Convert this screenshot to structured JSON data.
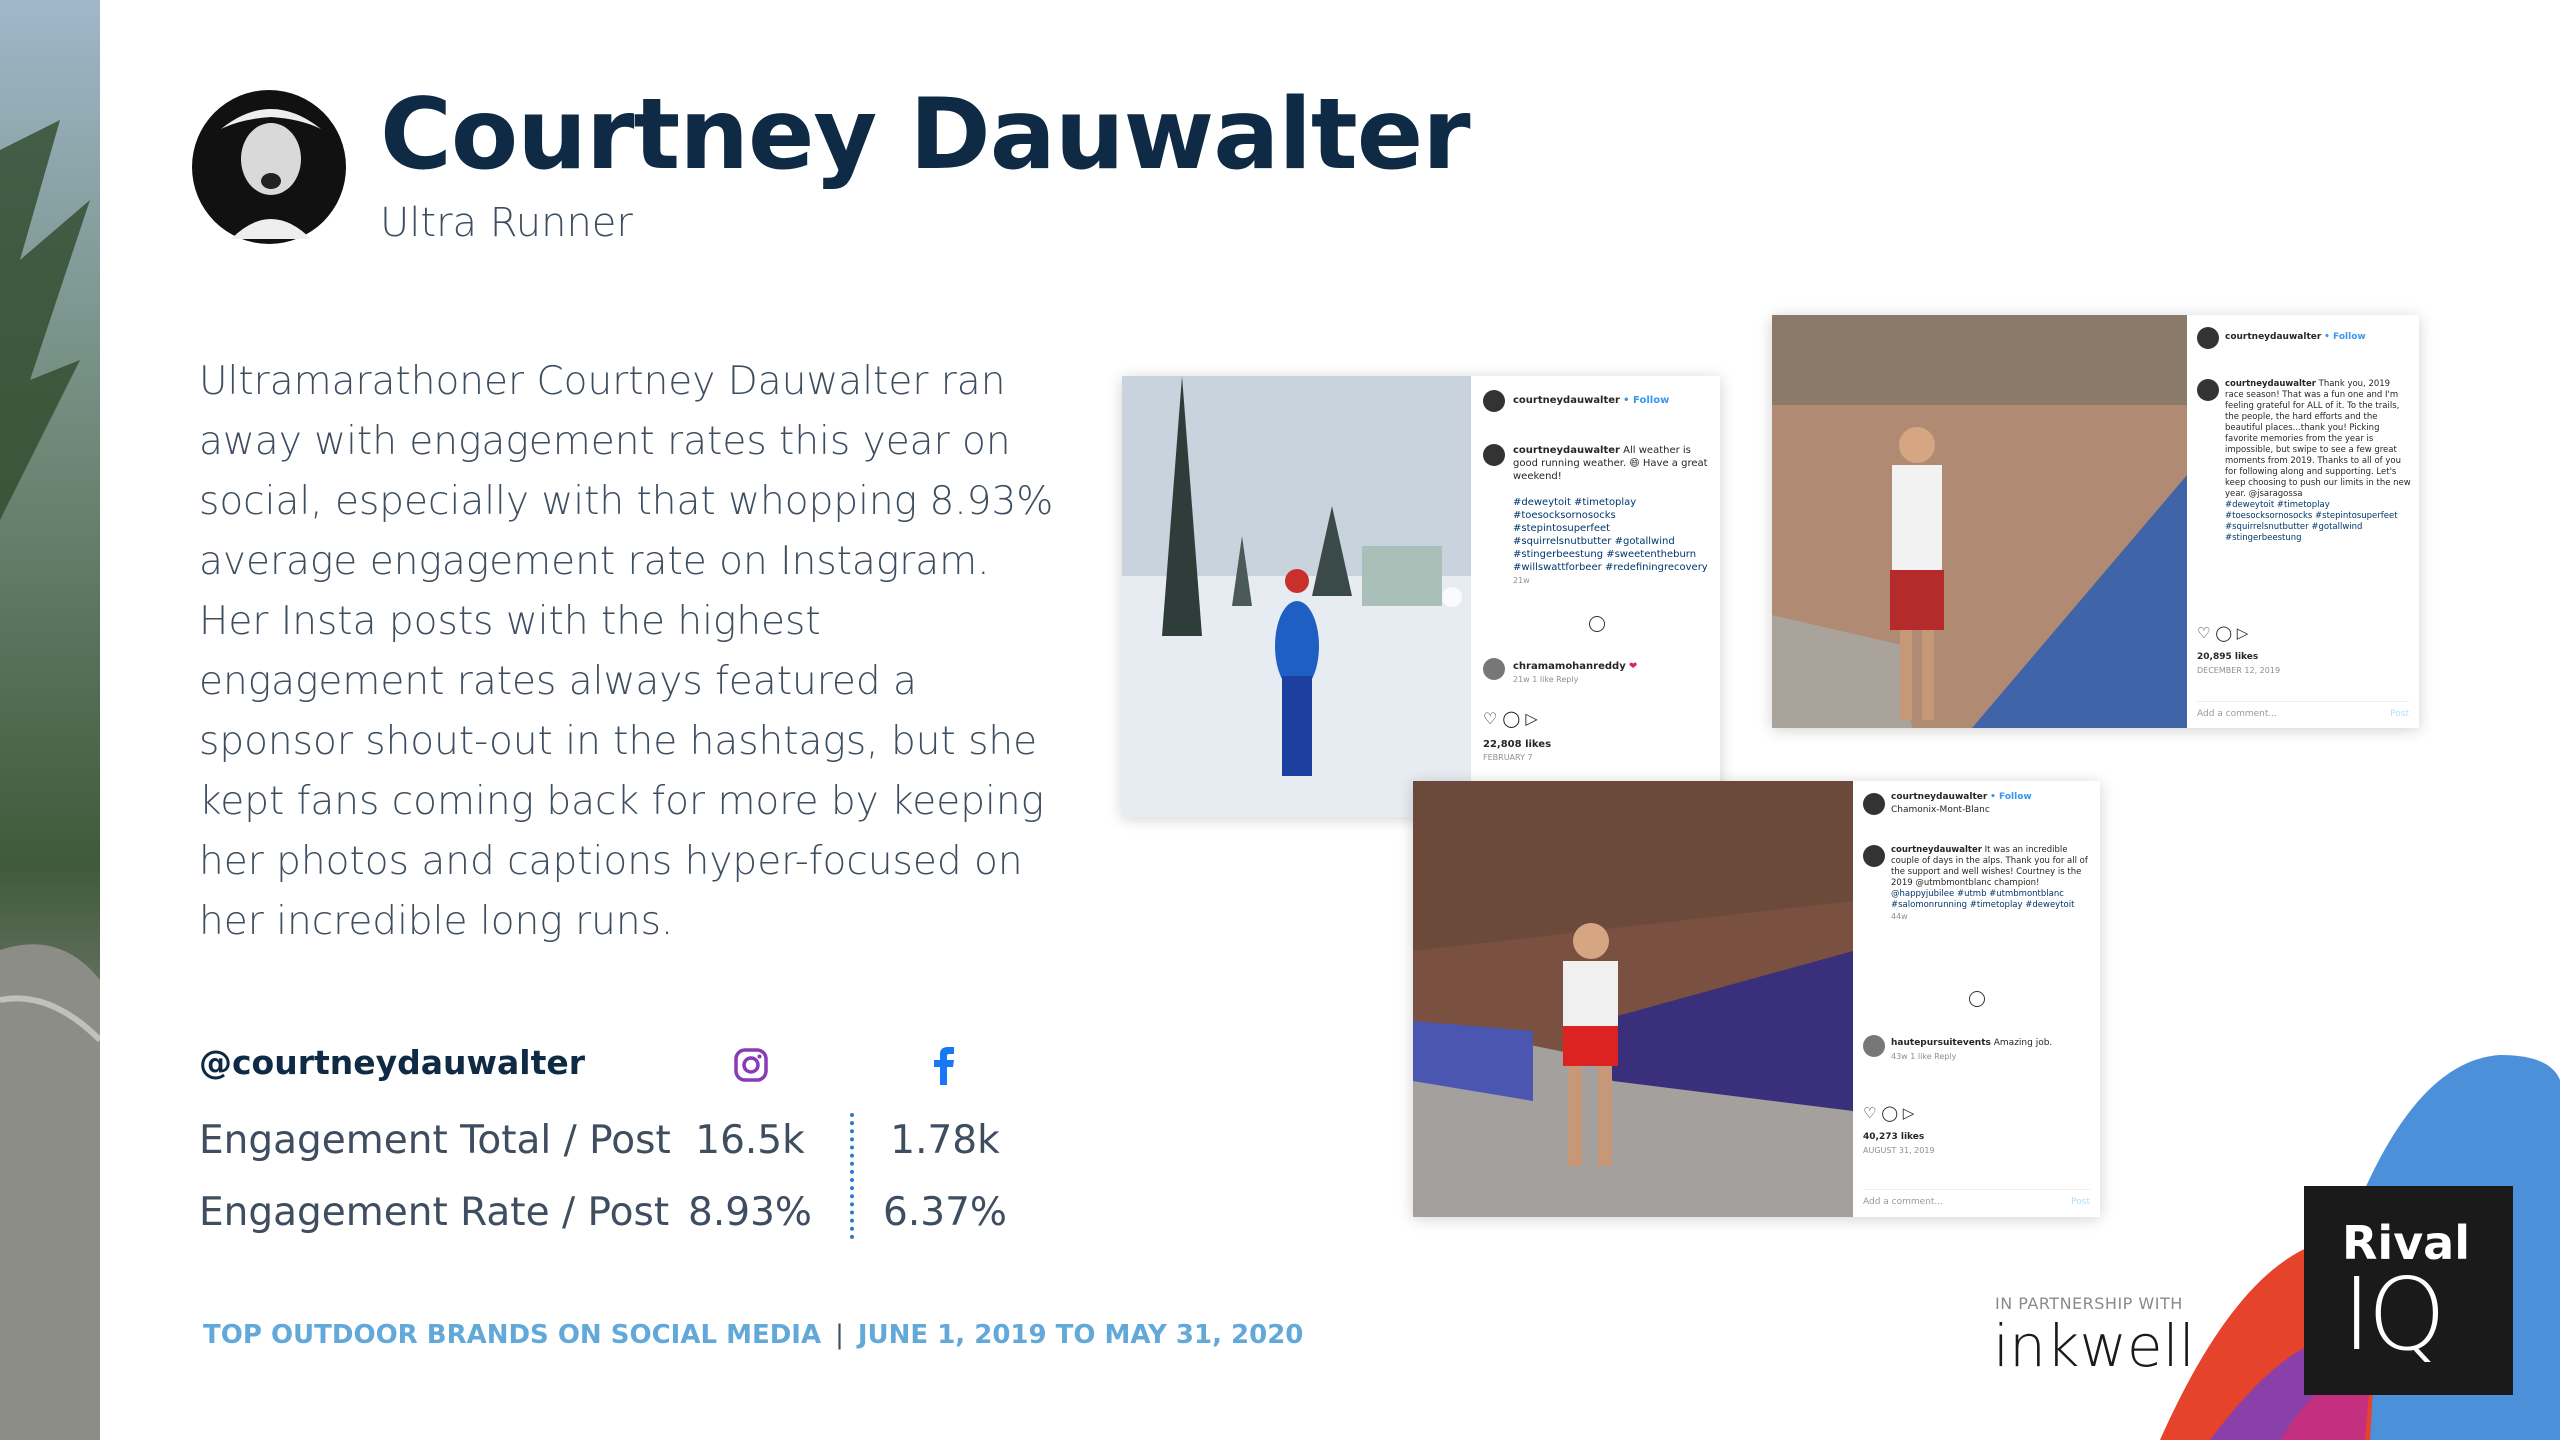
{
  "header": {
    "name": "Courtney Dauwalter",
    "subtitle": "Ultra Runner"
  },
  "description": "Ultramarathoner Courtney Dauwalter ran away with engagement rates this year on social, especially with that whopping 8.93% average engagement rate on Instagram. Her Insta posts with the highest engagement rates always featured a sponsor shout-out in the hashtags, but she kept fans coming back for more by keeping her photos and captions hyper-focused on her incredible long runs.",
  "stats": {
    "handle": "@courtneydauwalter",
    "rows": [
      {
        "label": "Engagement Total / Post",
        "instagram": "16.5k",
        "facebook": "1.78k"
      },
      {
        "label": "Engagement Rate / Post",
        "instagram": "8.93%",
        "facebook": "6.37%"
      }
    ]
  },
  "footer": {
    "report": "TOP OUTDOOR BRANDS ON SOCIAL MEDIA",
    "separator": "|",
    "dates": "JUNE 1, 2019 TO MAY 31, 2020"
  },
  "posts": [
    {
      "username": "courtneydauwalter",
      "follow": "• Follow",
      "caption": "All weather is good running weather. 😄 Have a great weekend!",
      "hashtags": "#deweytoit #timetoplay #toesocksornosocks #stepintosuperfeet #squirrelsnutbutter #gotallwind #stingerbeestung #sweetentheburn #willswattforbeer #redefiningrecovery",
      "age": "21w",
      "comment_user": "chramamohanreddy",
      "comment_meta": "21w 1 like Reply",
      "likes": "22,808 likes",
      "date": "FEBRUARY 7"
    },
    {
      "username": "courtneydauwalter",
      "follow": "• Follow",
      "caption": "Thank you, 2019 race season! That was a fun one and I'm feeling grateful for ALL of it. To the trails, the people, the hard efforts and the beautiful places...thank you! Picking favorite memories from the year is impossible, but swipe to see a few great moments from 2019. Thanks to all of you for following along and supporting. Let's keep choosing to push our limits in the new year. @jsaragossa",
      "hashtags": "#deweytoit #timetoplay #toesocksornosocks #stepintosuperfeet #squirrelsnutbutter #gotallwind #stingerbeestung",
      "likes": "20,895 likes",
      "date": "DECEMBER 12, 2019",
      "add_comment": "Add a comment...",
      "post_button": "Post"
    },
    {
      "username": "courtneydauwalter",
      "follow": "• Follow",
      "location": "Chamonix-Mont-Blanc",
      "caption": "It was an incredible couple of days in the alps. Thank you for all of the support and well wishes! Courtney is the 2019 @utmbmontblanc champion!",
      "hashtags": "@happyjubilee #utmb #utmbmontblanc #salomonrunning #timetoplay #deweytoit",
      "age": "44w",
      "comment_user": "hautepursuitevents",
      "comment_text": "Amazing job.",
      "comment_meta": "43w 1 like Reply",
      "likes": "40,273 likes",
      "date": "AUGUST 31, 2019",
      "add_comment": "Add a comment...",
      "post_button": "Post"
    }
  ],
  "partner": {
    "label": "IN PARTNERSHIP WITH",
    "name": "inkwell"
  },
  "logo": {
    "line1": "Rival",
    "line2": "IQ"
  }
}
